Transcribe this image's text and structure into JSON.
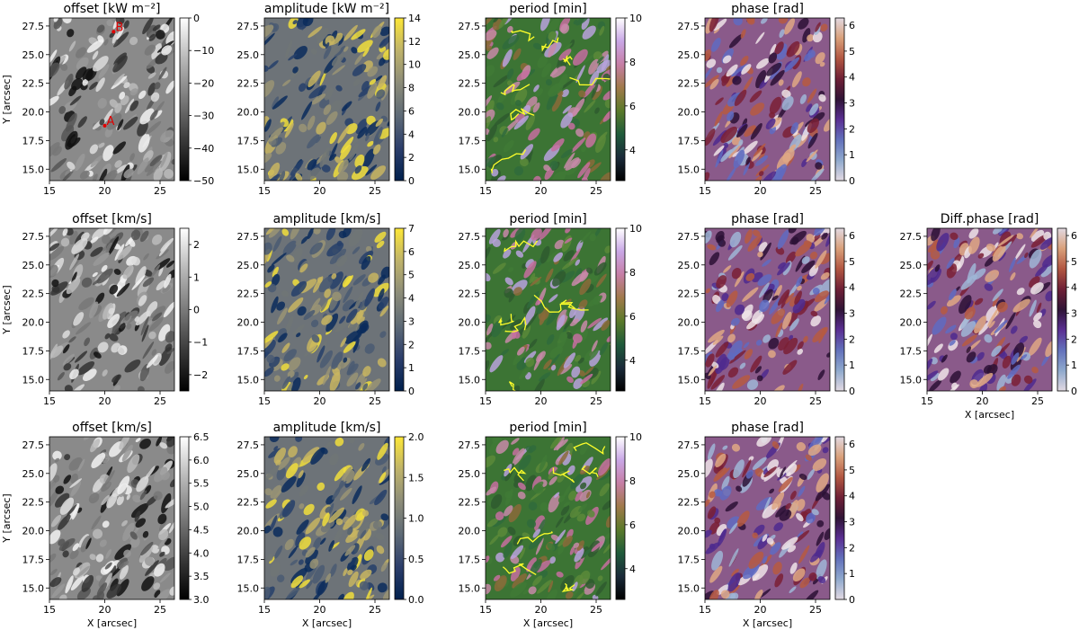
{
  "figure": {
    "xaxis_label": "X [arcsec]",
    "yaxis_label": "Y [arcsec]"
  },
  "chart_data": [
    {
      "type": "heatmap",
      "row": 0,
      "col": 0,
      "title": "offset [kW m⁻²]",
      "colormap": "gray-reversed",
      "xlim": [
        15,
        26.3
      ],
      "ylim": [
        14,
        28.2
      ],
      "xticks": [
        "15",
        "20",
        "25"
      ],
      "yticks": [
        "15.0",
        "17.5",
        "20.0",
        "22.5",
        "25.0",
        "27.5"
      ],
      "colorbar": {
        "range": [
          -50,
          0
        ],
        "ticks": [
          "0",
          "−10",
          "−20",
          "−30",
          "−40",
          "−50"
        ]
      },
      "annotations": [
        {
          "label": "B",
          "x": 20.8,
          "y": 27.0,
          "color": "#e00000"
        },
        {
          "label": "A",
          "x": 20.0,
          "y": 18.8,
          "color": "#e00000"
        }
      ],
      "xlabel": "",
      "ylabel": "Y [arcsec]"
    },
    {
      "type": "heatmap",
      "row": 0,
      "col": 1,
      "title": "amplitude [kW m⁻²]",
      "colormap": "cividis",
      "xlim": [
        15,
        26.3
      ],
      "ylim": [
        14,
        28.2
      ],
      "xticks": [
        "15",
        "20",
        "25"
      ],
      "yticks": [
        "15.0",
        "17.5",
        "20.0",
        "22.5",
        "25.0",
        "27.5"
      ],
      "colorbar": {
        "range": [
          0,
          14
        ],
        "ticks": [
          "0",
          "2",
          "4",
          "6",
          "8",
          "10",
          "12",
          "14"
        ]
      },
      "xlabel": "",
      "ylabel": ""
    },
    {
      "type": "heatmap",
      "row": 0,
      "col": 2,
      "title": "period [min]",
      "colormap": "cubehelix",
      "contours": "yellow",
      "xlim": [
        15,
        26.3
      ],
      "ylim": [
        14,
        28.2
      ],
      "xticks": [
        "15",
        "20",
        "25"
      ],
      "yticks": [
        "15.0",
        "17.5",
        "20.0",
        "22.5",
        "25.0",
        "27.5"
      ],
      "colorbar": {
        "range": [
          2.6,
          10
        ],
        "ticks": [
          "4",
          "6",
          "8",
          "10"
        ]
      },
      "xlabel": "",
      "ylabel": ""
    },
    {
      "type": "heatmap",
      "row": 0,
      "col": 3,
      "title": "phase [rad]",
      "colormap": "twilight",
      "xlim": [
        15,
        26.3
      ],
      "ylim": [
        14,
        28.2
      ],
      "xticks": [
        "15",
        "20",
        "25"
      ],
      "yticks": [
        "15.0",
        "17.5",
        "20.0",
        "22.5",
        "25.0",
        "27.5"
      ],
      "colorbar": {
        "range": [
          0,
          6.28
        ],
        "ticks": [
          "0",
          "1",
          "2",
          "3",
          "4",
          "5",
          "6"
        ]
      },
      "xlabel": "",
      "ylabel": ""
    },
    {
      "type": "heatmap",
      "row": 1,
      "col": 0,
      "title": "offset [km/s]",
      "colormap": "gray-reversed",
      "xlim": [
        15,
        26.3
      ],
      "ylim": [
        14,
        28.2
      ],
      "xticks": [
        "15",
        "20",
        "25"
      ],
      "yticks": [
        "15.0",
        "17.5",
        "20.0",
        "22.5",
        "25.0",
        "27.5"
      ],
      "colorbar": {
        "range": [
          -2.5,
          2.5
        ],
        "ticks": [
          "2",
          "1",
          "0",
          "−1",
          "−2"
        ]
      },
      "xlabel": "",
      "ylabel": "Y [arcsec]"
    },
    {
      "type": "heatmap",
      "row": 1,
      "col": 1,
      "title": "amplitude [km/s]",
      "colormap": "cividis",
      "xlim": [
        15,
        26.3
      ],
      "ylim": [
        14,
        28.2
      ],
      "xticks": [
        "15",
        "20",
        "25"
      ],
      "yticks": [
        "15.0",
        "17.5",
        "20.0",
        "22.5",
        "25.0",
        "27.5"
      ],
      "colorbar": {
        "range": [
          0,
          7
        ],
        "ticks": [
          "0",
          "1",
          "2",
          "3",
          "4",
          "5",
          "6",
          "7"
        ]
      },
      "xlabel": "",
      "ylabel": ""
    },
    {
      "type": "heatmap",
      "row": 1,
      "col": 2,
      "title": "period [min]",
      "colormap": "cubehelix",
      "contours": "yellow",
      "xlim": [
        15,
        26.3
      ],
      "ylim": [
        14,
        28.2
      ],
      "xticks": [
        "15",
        "20",
        "25"
      ],
      "yticks": [
        "15.0",
        "17.5",
        "20.0",
        "22.5",
        "25.0",
        "27.5"
      ],
      "colorbar": {
        "range": [
          2.6,
          10
        ],
        "ticks": [
          "4",
          "6",
          "8",
          "10"
        ]
      },
      "xlabel": "",
      "ylabel": ""
    },
    {
      "type": "heatmap",
      "row": 1,
      "col": 3,
      "title": "phase [rad]",
      "colormap": "twilight",
      "xlim": [
        15,
        26.3
      ],
      "ylim": [
        14,
        28.2
      ],
      "xticks": [
        "15",
        "20",
        "25"
      ],
      "yticks": [
        "15.0",
        "17.5",
        "20.0",
        "22.5",
        "25.0",
        "27.5"
      ],
      "colorbar": {
        "range": [
          0,
          6.28
        ],
        "ticks": [
          "0",
          "1",
          "2",
          "3",
          "4",
          "5",
          "6"
        ]
      },
      "xlabel": "",
      "ylabel": ""
    },
    {
      "type": "heatmap",
      "row": 1,
      "col": 4,
      "title": "Diff.phase [rad]",
      "colormap": "twilight",
      "xlim": [
        15,
        26.3
      ],
      "ylim": [
        14,
        28.2
      ],
      "xticks": [
        "15",
        "20",
        "25"
      ],
      "yticks": [
        "15.0",
        "17.5",
        "20.0",
        "22.5",
        "25.0",
        "27.5"
      ],
      "colorbar": {
        "range": [
          0,
          6.28
        ],
        "ticks": [
          "0",
          "1",
          "2",
          "3",
          "4",
          "5",
          "6"
        ]
      },
      "xlabel": "X [arcsec]",
      "ylabel": ""
    },
    {
      "type": "heatmap",
      "row": 2,
      "col": 0,
      "title": "offset [km/s]",
      "colormap": "gray-reversed",
      "xlim": [
        15,
        26.3
      ],
      "ylim": [
        14,
        28.2
      ],
      "xticks": [
        "15",
        "20",
        "25"
      ],
      "yticks": [
        "15.0",
        "17.5",
        "20.0",
        "22.5",
        "25.0",
        "27.5"
      ],
      "colorbar": {
        "range": [
          3.0,
          6.5
        ],
        "ticks": [
          "6.5",
          "6.0",
          "5.5",
          "5.0",
          "4.5",
          "4.0",
          "3.5",
          "3.0"
        ]
      },
      "xlabel": "X [arcsec]",
      "ylabel": "Y [arcsec]"
    },
    {
      "type": "heatmap",
      "row": 2,
      "col": 1,
      "title": "amplitude [km/s]",
      "colormap": "cividis",
      "xlim": [
        15,
        26.3
      ],
      "ylim": [
        14,
        28.2
      ],
      "xticks": [
        "15",
        "20",
        "25"
      ],
      "yticks": [
        "15.0",
        "17.5",
        "20.0",
        "22.5",
        "25.0",
        "27.5"
      ],
      "colorbar": {
        "range": [
          0,
          2
        ],
        "ticks": [
          "0.0",
          "0.5",
          "1.0",
          "1.5",
          "2.0"
        ]
      },
      "xlabel": "X [arcsec]",
      "ylabel": ""
    },
    {
      "type": "heatmap",
      "row": 2,
      "col": 2,
      "title": "period [min]",
      "colormap": "cubehelix",
      "contours": "yellow",
      "xlim": [
        15,
        26.3
      ],
      "ylim": [
        14,
        28.2
      ],
      "xticks": [
        "15",
        "20",
        "25"
      ],
      "yticks": [
        "15.0",
        "17.5",
        "20.0",
        "22.5",
        "25.0",
        "27.5"
      ],
      "colorbar": {
        "range": [
          2.6,
          10
        ],
        "ticks": [
          "4",
          "6",
          "8",
          "10"
        ]
      },
      "xlabel": "X [arcsec]",
      "ylabel": ""
    },
    {
      "type": "heatmap",
      "row": 2,
      "col": 3,
      "title": "phase [rad]",
      "colormap": "twilight",
      "xlim": [
        15,
        26.3
      ],
      "ylim": [
        14,
        28.2
      ],
      "xticks": [
        "15",
        "20",
        "25"
      ],
      "yticks": [
        "15.0",
        "17.5",
        "20.0",
        "22.5",
        "25.0",
        "27.5"
      ],
      "colorbar": {
        "range": [
          0,
          6.28
        ],
        "ticks": [
          "0",
          "1",
          "2",
          "3",
          "4",
          "5",
          "6"
        ]
      },
      "xlabel": "X [arcsec]",
      "ylabel": ""
    }
  ]
}
